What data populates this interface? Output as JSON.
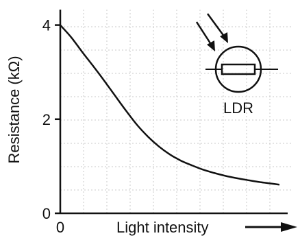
{
  "chart_data": {
    "type": "line",
    "title": "",
    "xlabel": "Light intensity",
    "ylabel": "Resistance (kΩ)",
    "x_ticks": [
      "0"
    ],
    "y_ticks": [
      {
        "value": 0,
        "label": "0"
      },
      {
        "value": 2,
        "label": "2"
      },
      {
        "value": 4,
        "label": "4"
      }
    ],
    "xlim": [
      0,
      1
    ],
    "ylim": [
      0,
      4.3
    ],
    "grid": true,
    "series": [
      {
        "x": [
          0,
          0.05,
          0.1,
          0.15,
          0.2,
          0.25,
          0.3,
          0.35,
          0.4,
          0.45,
          0.5,
          0.55,
          0.6,
          0.65,
          0.7,
          0.75,
          0.8,
          0.85,
          0.9,
          0.95,
          1.0
        ],
        "y": [
          4.0,
          3.74,
          3.43,
          3.13,
          2.82,
          2.5,
          2.18,
          1.88,
          1.63,
          1.42,
          1.25,
          1.12,
          1.02,
          0.93,
          0.86,
          0.8,
          0.75,
          0.71,
          0.67,
          0.64,
          0.61
        ]
      }
    ],
    "annotations": [
      {
        "text": "LDR",
        "kind": "circuit-symbol"
      }
    ]
  }
}
